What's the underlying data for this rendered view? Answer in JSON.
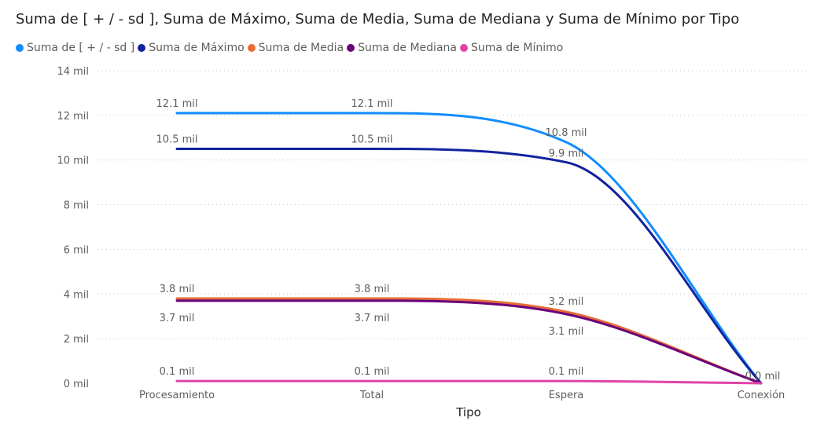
{
  "title": "Suma de [ + / - sd ], Suma de Máximo, Suma de Media, Suma de Mediana y Suma de Mínimo por Tipo",
  "chart_data": {
    "type": "line",
    "title": "Suma de [ + / - sd ], Suma de Máximo, Suma de Media, Suma de Mediana y Suma de Mínimo por Tipo",
    "xlabel": "Tipo",
    "ylabel": "",
    "categories": [
      "Procesamiento",
      "Total",
      "Espera",
      "Conexión"
    ],
    "ylim": [
      0,
      14000
    ],
    "yticks": [
      0,
      2000,
      4000,
      6000,
      8000,
      10000,
      12000,
      14000
    ],
    "ytick_labels": [
      "0 mil",
      "2 mil",
      "4 mil",
      "6 mil",
      "8 mil",
      "10 mil",
      "12 mil",
      "14 mil"
    ],
    "grid": true,
    "legend_position": "top-left",
    "series": [
      {
        "name": "Suma de [ + / - sd ]",
        "color": "#118DFF",
        "values": [
          12100,
          12100,
          10800,
          0
        ],
        "labels": [
          "12.1 mil",
          "12.1 mil",
          "10.8 mil",
          "0.0 mil"
        ]
      },
      {
        "name": "Suma de Máximo",
        "color": "#12239E",
        "values": [
          10500,
          10500,
          9900,
          0
        ],
        "labels": [
          "10.5 mil",
          "10.5 mil",
          "9.9 mil",
          ""
        ]
      },
      {
        "name": "Suma de Media",
        "color": "#E66C37",
        "values": [
          3800,
          3800,
          3200,
          0
        ],
        "labels": [
          "3.8 mil",
          "3.8 mil",
          "3.2 mil",
          ""
        ]
      },
      {
        "name": "Suma de Mediana",
        "color": "#6B007B",
        "values": [
          3700,
          3700,
          3100,
          0
        ],
        "labels": [
          "3.7 mil",
          "3.7 mil",
          "3.1 mil",
          ""
        ]
      },
      {
        "name": "Suma de Mínimo",
        "color": "#E044A7",
        "values": [
          100,
          100,
          100,
          0
        ],
        "labels": [
          "0.1 mil",
          "0.1 mil",
          "0.1 mil",
          ""
        ]
      }
    ]
  }
}
